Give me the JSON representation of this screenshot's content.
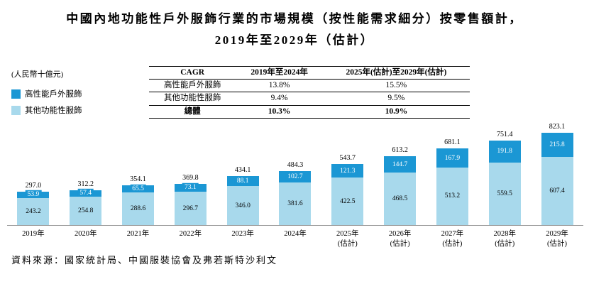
{
  "title": {
    "line1": "中國內地功能性戶外服飾行業的市場規模（按性能需求細分）按零售額計，",
    "line2": "2019年至2029年（估計）"
  },
  "unit_label": "(人民幣十億元)",
  "legend": [
    {
      "label": "高性能戶外服飾",
      "color": "#1b97d4"
    },
    {
      "label": "其他功能性服飾",
      "color": "#a8d9ec"
    }
  ],
  "cagr_table": {
    "headers": [
      "CAGR",
      "2019年至2024年",
      "2025年(估計)至2029年(估計)"
    ],
    "rows": [
      {
        "label": "高性能戶外服飾",
        "values": [
          "13.8%",
          "15.5%"
        ],
        "bold": false
      },
      {
        "label": "其他功能性服飾",
        "values": [
          "9.4%",
          "9.5%"
        ],
        "bold": false
      },
      {
        "label": "總體",
        "values": [
          "10.3%",
          "10.9%"
        ],
        "bold": true
      }
    ]
  },
  "chart_data": {
    "type": "bar",
    "stacked": true,
    "title": "中國內地功能性戶外服飾行業的市場規模（按性能需求細分）按零售額計，2019年至2029年（估計）",
    "ylabel": "人民幣十億元",
    "ylim": [
      0,
      900
    ],
    "grid": false,
    "legend_position": "left",
    "categories": [
      "2019年",
      "2020年",
      "2021年",
      "2022年",
      "2023年",
      "2024年",
      "2025年(估計)",
      "2026年(估計)",
      "2027年(估計)",
      "2028年(估計)",
      "2029年(估計)"
    ],
    "series": [
      {
        "name": "高性能戶外服飾",
        "color": "#1b97d4",
        "values": [
          53.9,
          57.4,
          65.5,
          73.1,
          88.1,
          102.7,
          121.3,
          144.7,
          167.9,
          191.8,
          215.8
        ]
      },
      {
        "name": "其他功能性服飾",
        "color": "#a8d9ec",
        "values": [
          243.2,
          254.8,
          288.6,
          296.7,
          346.0,
          381.6,
          422.5,
          468.5,
          513.2,
          559.5,
          607.4
        ]
      }
    ],
    "totals": [
      297.0,
      312.2,
      354.1,
      369.8,
      434.1,
      484.3,
      543.7,
      613.2,
      681.1,
      751.4,
      823.1
    ]
  },
  "source": "資料來源：國家統計局、中國服裝協會及弗若斯特沙利文"
}
